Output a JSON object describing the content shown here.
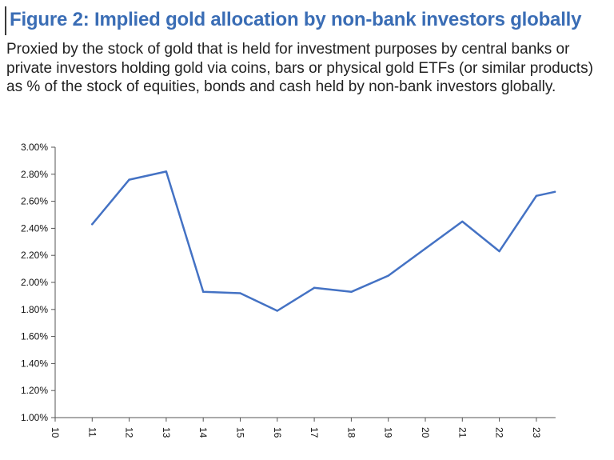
{
  "header": {
    "title": "Figure 2: Implied gold allocation by non-bank investors globally",
    "subtitle": "Proxied by the stock of gold that is held for investment purposes by central banks or private investors holding gold via coins, bars or physical gold ETFs (or similar products) as % of the stock of equities, bonds and cash held by non-bank investors globally."
  },
  "chart_data": {
    "type": "line",
    "title": "Figure 2: Implied gold allocation by non-bank investors globally",
    "xlabel": "",
    "ylabel": "",
    "x_ticks": [
      "10",
      "11",
      "12",
      "13",
      "14",
      "15",
      "16",
      "17",
      "18",
      "19",
      "20",
      "21",
      "22",
      "23"
    ],
    "y_ticks": [
      "1.00%",
      "1.20%",
      "1.40%",
      "1.60%",
      "1.80%",
      "2.00%",
      "2.20%",
      "2.40%",
      "2.60%",
      "2.80%",
      "3.00%"
    ],
    "ylim": [
      1.0,
      3.0
    ],
    "grid": false,
    "series": [
      {
        "color": "#4472c4",
        "x": [
          11,
          12,
          13,
          14,
          15,
          16,
          17,
          18,
          19,
          20,
          21,
          22,
          23,
          23.5
        ],
        "values": [
          2.43,
          2.76,
          2.82,
          1.93,
          1.92,
          1.79,
          1.96,
          1.93,
          2.05,
          2.25,
          2.45,
          2.23,
          2.64,
          2.67
        ]
      }
    ]
  }
}
